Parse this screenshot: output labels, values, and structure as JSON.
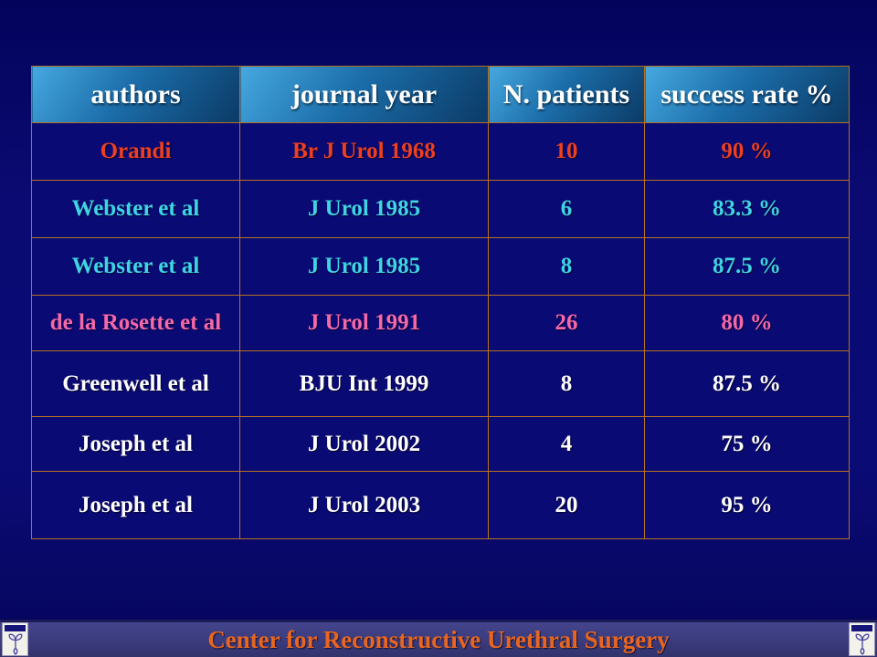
{
  "slide": {
    "background_color": "#0b0b74",
    "footer": {
      "text": "Center for Reconstructive Urethral Surgery",
      "text_color": "#e8661f",
      "band_color": "#3b3b7e"
    },
    "logo_icon": "urology-center-emblem"
  },
  "table": {
    "border_color": "#b5721f",
    "header": {
      "labels": [
        "authors",
        "journal year",
        "N. patients",
        "success rate %"
      ],
      "text_color": "#ffffff",
      "gradient_top": "#46a8e0",
      "gradient_bottom": "#0b3a66"
    },
    "rows": [
      {
        "author": "Orandi",
        "journal_year": "Br J Urol 1968",
        "n_patients": "10",
        "success_rate": "90 %",
        "color": "#ee3f23"
      },
      {
        "author": "Webster et al",
        "journal_year": "J Urol 1985",
        "n_patients": "6",
        "success_rate": "83.3 %",
        "color": "#3ed4e6"
      },
      {
        "author": "Webster et al",
        "journal_year": "J Urol 1985",
        "n_patients": "8",
        "success_rate": "87.5 %",
        "color": "#3ed4e6"
      },
      {
        "author": "de la Rosette et al",
        "journal_year": "J Urol 1991",
        "n_patients": "26",
        "success_rate": "80 %",
        "color": "#f468aa"
      },
      {
        "author": "Greenwell et al",
        "journal_year": "BJU Int 1999",
        "n_patients": "8",
        "success_rate": "87.5 %",
        "color": "#ffffff"
      },
      {
        "author": "Joseph et al",
        "journal_year": "J Urol 2002",
        "n_patients": "4",
        "success_rate": "75 %",
        "color": "#ffffff"
      },
      {
        "author": "Joseph et al",
        "journal_year": "J Urol 2003",
        "n_patients": "20",
        "success_rate": "95 %",
        "color": "#ffffff"
      }
    ]
  },
  "chart_data": {
    "type": "table",
    "title": "",
    "columns": [
      "authors",
      "journal year",
      "N. patients",
      "success rate %"
    ],
    "rows": [
      [
        "Orandi",
        "Br J Urol 1968",
        10,
        90
      ],
      [
        "Webster et al",
        "J Urol 1985",
        6,
        83.3
      ],
      [
        "Webster et al",
        "J Urol 1985",
        8,
        87.5
      ],
      [
        "de la Rosette et al",
        "J Urol 1991",
        26,
        80
      ],
      [
        "Greenwell et al",
        "BJU Int 1999",
        8,
        87.5
      ],
      [
        "Joseph et al",
        "J Urol 2002",
        4,
        75
      ],
      [
        "Joseph et al",
        "J Urol 2003",
        20,
        95
      ]
    ]
  }
}
